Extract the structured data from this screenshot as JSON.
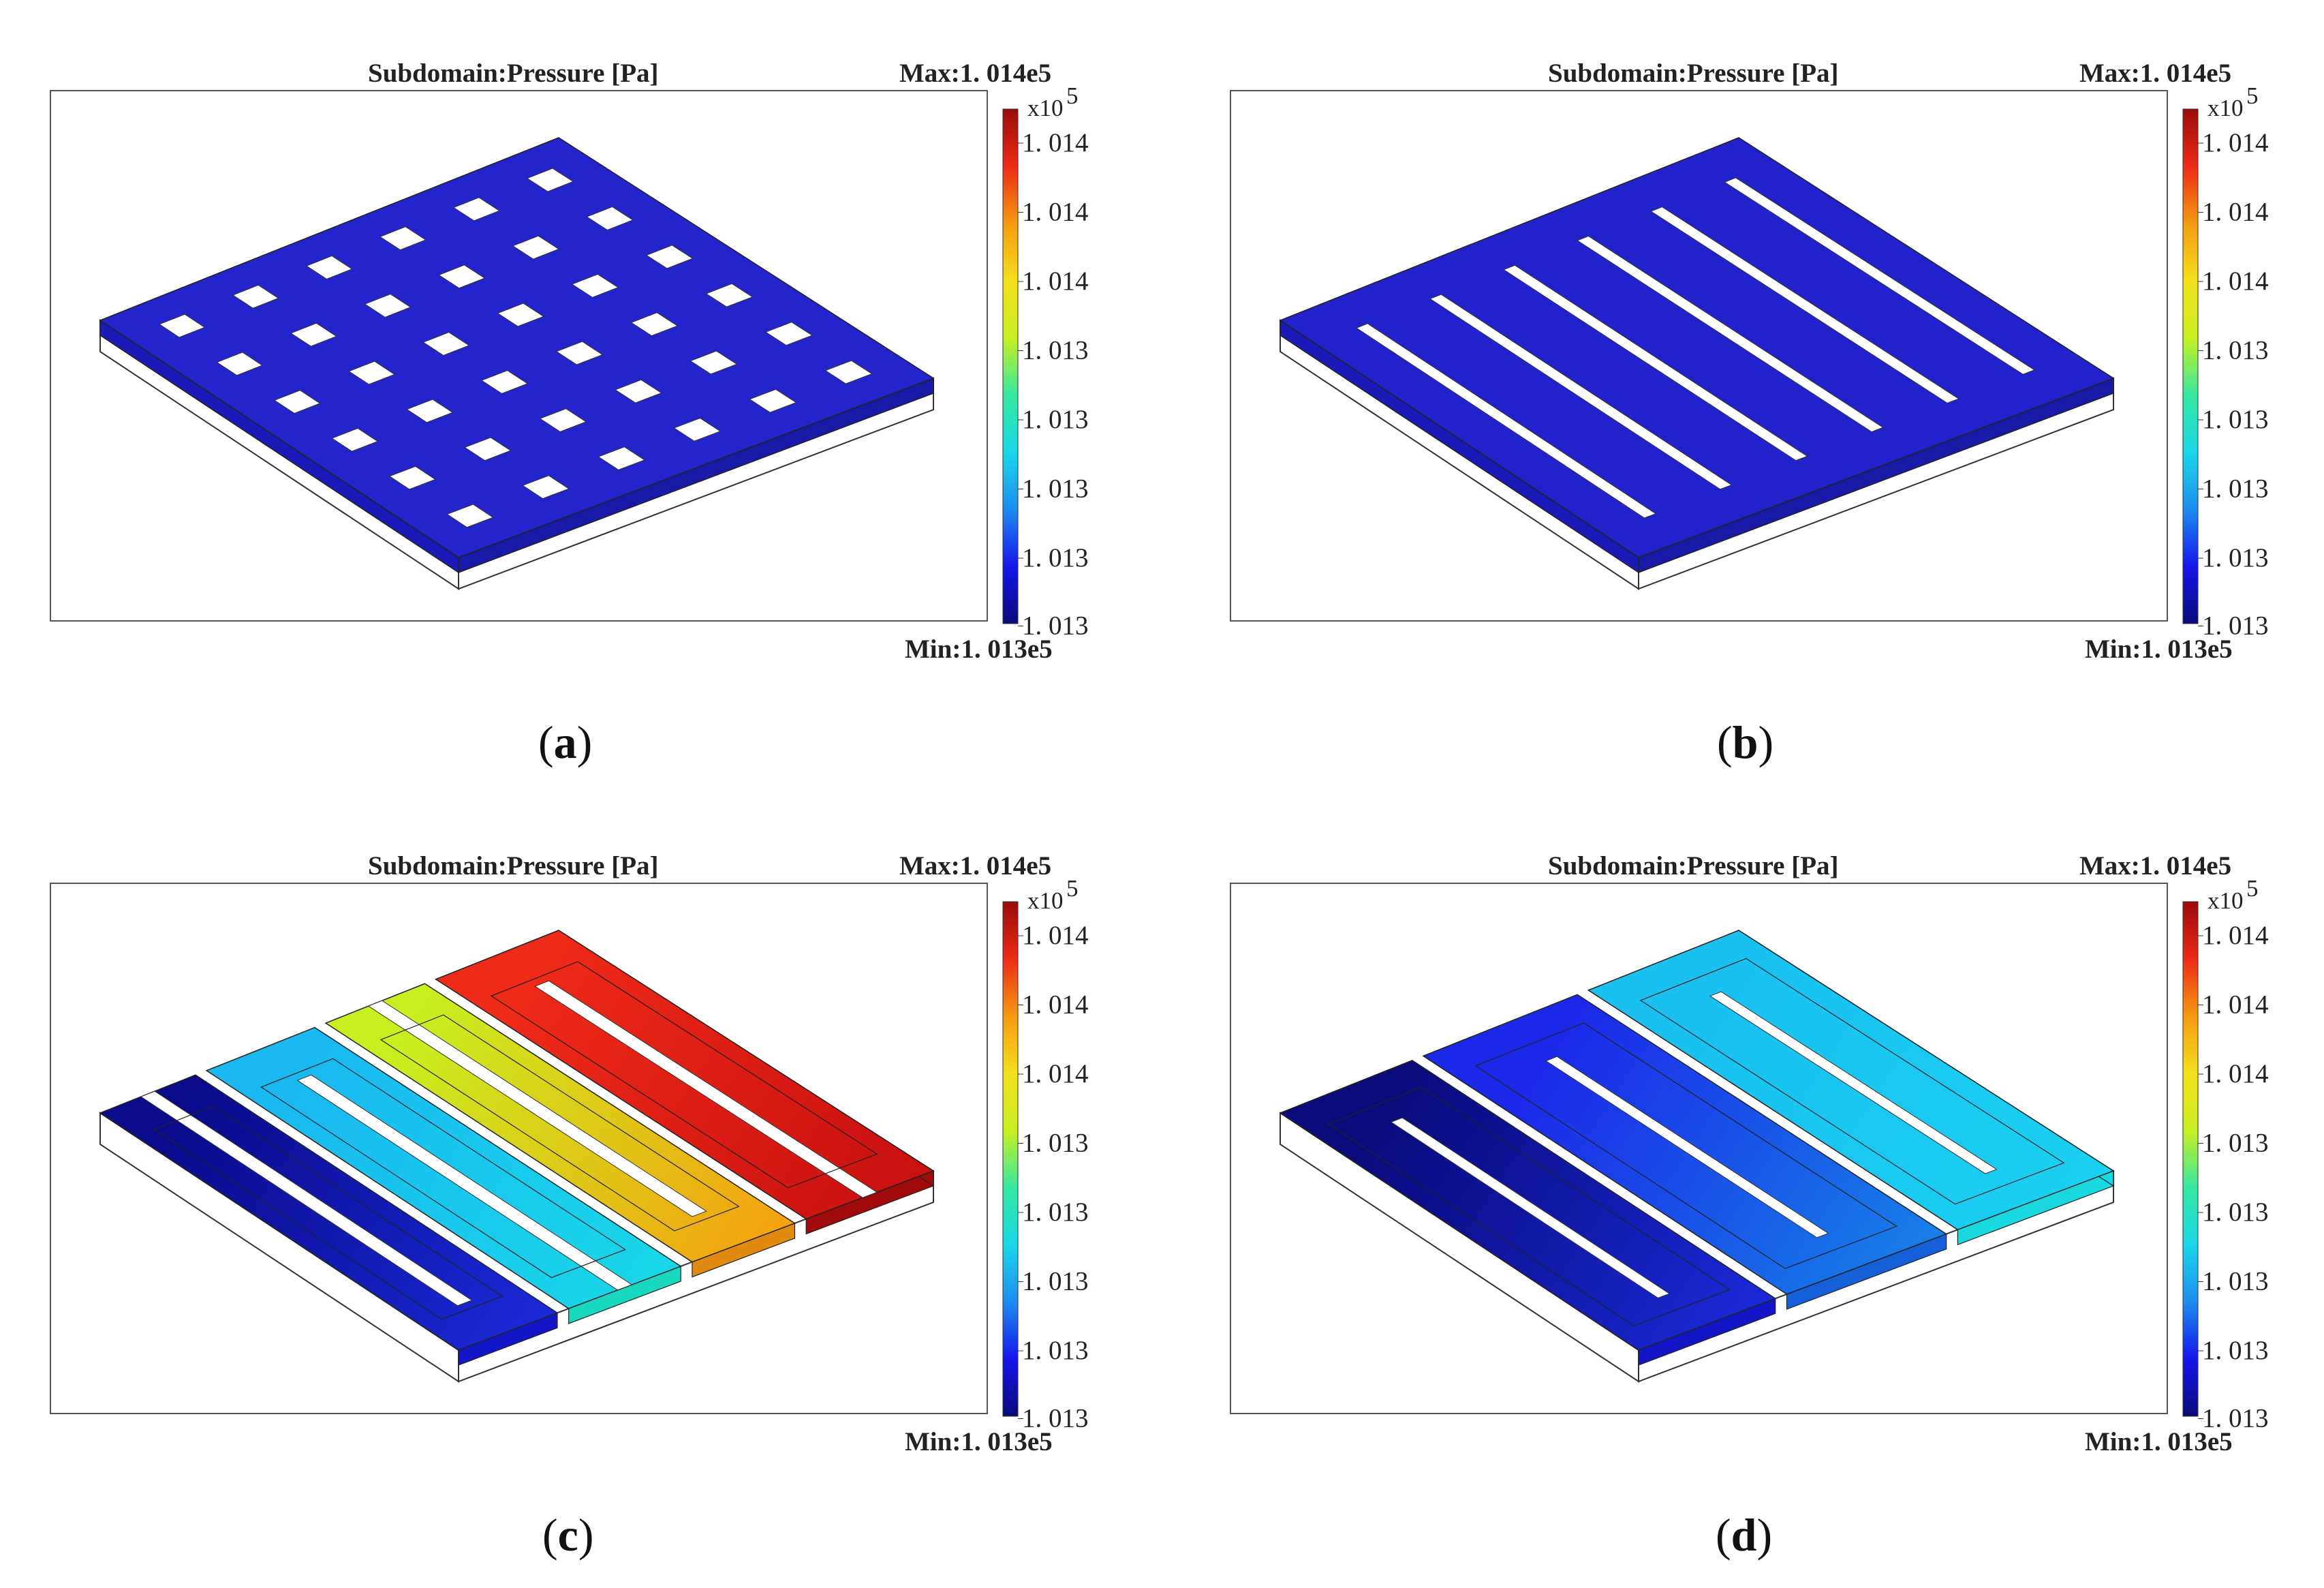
{
  "figure": {
    "panels": [
      {
        "id": "a",
        "caption": "a",
        "title": "Subdomain:Pressure [Pa]",
        "max_label": "Max:1. 014e5",
        "min_label": "Min:1. 013e5",
        "unit_label": "x10",
        "unit_exp": "5",
        "ticks": [
          "1. 014",
          "1. 014",
          "1. 014",
          "1. 013",
          "1. 013",
          "1. 013",
          "1. 013",
          "1. 013"
        ],
        "pattern": "holes-grid",
        "top_color": "#2424cc"
      },
      {
        "id": "b",
        "caption": "b",
        "title": "Subdomain:Pressure [Pa]",
        "max_label": "Max:1. 014e5",
        "min_label": "Min:1. 013e5",
        "unit_label": "x10",
        "unit_exp": "5",
        "ticks": [
          "1. 014",
          "1. 014",
          "1. 014",
          "1. 013",
          "1. 013",
          "1. 013",
          "1. 013",
          "1. 013"
        ],
        "pattern": "parallel-slots",
        "top_color": "#2222cc"
      },
      {
        "id": "c",
        "caption": "c",
        "title": "Subdomain:Pressure [Pa]",
        "max_label": "Max:1. 014e5",
        "min_label": "Min:1. 013e5",
        "unit_label": "x10",
        "unit_exp": "5",
        "ticks": [
          "1. 014",
          "1. 014",
          "1. 014",
          "1. 013",
          "1. 013",
          "1. 013",
          "1. 013",
          "1. 013"
        ],
        "pattern": "single-serpentine",
        "top_color": "#ee2a18"
      },
      {
        "id": "d",
        "caption": "d",
        "title": "Subdomain:Pressure [Pa]",
        "max_label": "Max:1. 014e5",
        "min_label": "Min:1. 013e5",
        "unit_label": "x10",
        "unit_exp": "5",
        "ticks": [
          "1. 014",
          "1. 014",
          "1. 014",
          "1. 013",
          "1. 013",
          "1. 013",
          "1. 013",
          "1. 013"
        ],
        "pattern": "double-serpentine",
        "top_color": "#18c8f0"
      }
    ],
    "colorbar_stops": [
      "#0a0a7a",
      "#1515ee",
      "#1e8cf0",
      "#19d8e8",
      "#35e8a0",
      "#c8f020",
      "#f5e01a",
      "#f59a10",
      "#ee2a18",
      "#9a0a0a"
    ]
  }
}
